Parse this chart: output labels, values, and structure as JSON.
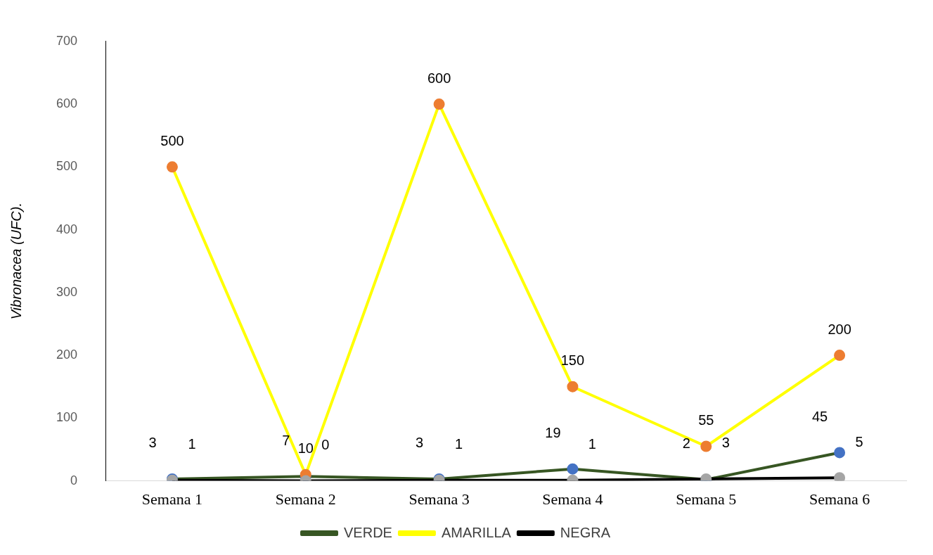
{
  "chart_data": {
    "type": "line",
    "ylabel": "Vibronacea (UFC).",
    "categories": [
      "Semana 1",
      "Semana 2",
      "Semana 3",
      "Semana 4",
      "Semana 5",
      "Semana 6"
    ],
    "series": [
      {
        "name": "VERDE",
        "color": "#375623",
        "colors": [
          "#4472c4",
          "#4472c4",
          "#4472c4",
          "#4472c4",
          "#4472c4",
          "#4472c4"
        ],
        "values": [
          3,
          7,
          3,
          19,
          2,
          45
        ]
      },
      {
        "name": "AMARILLA",
        "color": "#ffff00",
        "colors": [
          "#ed7d31",
          "#ed7d31",
          "#ed7d31",
          "#ed7d31",
          "#ed7d31",
          "#ed7d31"
        ],
        "values": [
          500,
          10,
          600,
          150,
          55,
          200
        ]
      },
      {
        "name": "NEGRA",
        "color": "#000000",
        "colors": [
          "#a5a5a5",
          "#a5a5a5",
          "#a5a5a5",
          "#a5a5a5",
          "#a5a5a5",
          "#a5a5a5"
        ],
        "values": [
          1,
          0,
          1,
          1,
          3,
          5
        ]
      }
    ],
    "ylim": [
      0,
      700
    ],
    "yticks": [
      0,
      100,
      200,
      300,
      400,
      500,
      600,
      700
    ],
    "grid": false,
    "legend": "bottom",
    "marker": "circle",
    "line_style": "solid",
    "data_labels": true
  }
}
